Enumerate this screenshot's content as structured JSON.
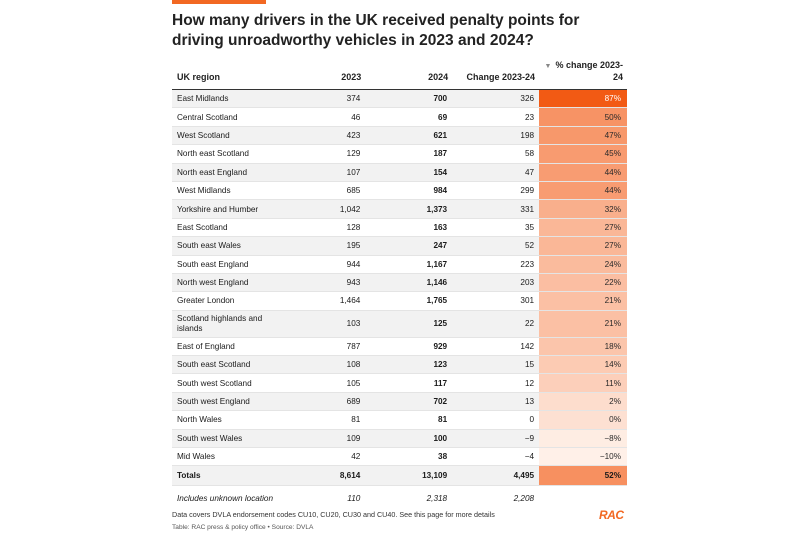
{
  "title": "How many drivers in the UK received penalty points for driving unroadworthy vehicles in 2023 and 2024?",
  "columns": {
    "region": "UK region",
    "y2023": "2023",
    "y2024": "2024",
    "change": "Change 2023-24",
    "pct": "% change 2023-24",
    "sort_icon": "triangle-down-icon"
  },
  "chart_data": {
    "type": "table",
    "title": "How many drivers in the UK received penalty points for driving unroadworthy vehicles in 2023 and 2024?",
    "rows": [
      {
        "region": "East Midlands",
        "y2023": "374",
        "y2024": "700",
        "change": "326",
        "pct": "87%",
        "pct_value": 87
      },
      {
        "region": "Central Scotland",
        "y2023": "46",
        "y2024": "69",
        "change": "23",
        "pct": "50%",
        "pct_value": 50
      },
      {
        "region": "West Scotland",
        "y2023": "423",
        "y2024": "621",
        "change": "198",
        "pct": "47%",
        "pct_value": 47
      },
      {
        "region": "North east Scotland",
        "y2023": "129",
        "y2024": "187",
        "change": "58",
        "pct": "45%",
        "pct_value": 45
      },
      {
        "region": "North east England",
        "y2023": "107",
        "y2024": "154",
        "change": "47",
        "pct": "44%",
        "pct_value": 44
      },
      {
        "region": "West Midlands",
        "y2023": "685",
        "y2024": "984",
        "change": "299",
        "pct": "44%",
        "pct_value": 44
      },
      {
        "region": "Yorkshire and Humber",
        "y2023": "1,042",
        "y2024": "1,373",
        "change": "331",
        "pct": "32%",
        "pct_value": 32
      },
      {
        "region": "East Scotland",
        "y2023": "128",
        "y2024": "163",
        "change": "35",
        "pct": "27%",
        "pct_value": 27
      },
      {
        "region": "South east Wales",
        "y2023": "195",
        "y2024": "247",
        "change": "52",
        "pct": "27%",
        "pct_value": 27
      },
      {
        "region": "South east England",
        "y2023": "944",
        "y2024": "1,167",
        "change": "223",
        "pct": "24%",
        "pct_value": 24
      },
      {
        "region": "North west England",
        "y2023": "943",
        "y2024": "1,146",
        "change": "203",
        "pct": "22%",
        "pct_value": 22
      },
      {
        "region": "Greater London",
        "y2023": "1,464",
        "y2024": "1,765",
        "change": "301",
        "pct": "21%",
        "pct_value": 21
      },
      {
        "region": "Scotland highlands and islands",
        "y2023": "103",
        "y2024": "125",
        "change": "22",
        "pct": "21%",
        "pct_value": 21
      },
      {
        "region": "East of England",
        "y2023": "787",
        "y2024": "929",
        "change": "142",
        "pct": "18%",
        "pct_value": 18
      },
      {
        "region": "South east Scotland",
        "y2023": "108",
        "y2024": "123",
        "change": "15",
        "pct": "14%",
        "pct_value": 14
      },
      {
        "region": "South west Scotland",
        "y2023": "105",
        "y2024": "117",
        "change": "12",
        "pct": "11%",
        "pct_value": 11
      },
      {
        "region": "South west England",
        "y2023": "689",
        "y2024": "702",
        "change": "13",
        "pct": "2%",
        "pct_value": 2
      },
      {
        "region": "North Wales",
        "y2023": "81",
        "y2024": "81",
        "change": "0",
        "pct": "0%",
        "pct_value": 0
      },
      {
        "region": "South west Wales",
        "y2023": "109",
        "y2024": "100",
        "change": "−9",
        "pct": "−8%",
        "pct_value": -8
      },
      {
        "region": "Mid Wales",
        "y2023": "42",
        "y2024": "38",
        "change": "−4",
        "pct": "−10%",
        "pct_value": -10
      }
    ],
    "totals": {
      "region": "Totals",
      "y2023": "8,614",
      "y2024": "13,109",
      "change": "4,495",
      "pct": "52%",
      "pct_value": 52
    },
    "unknown": {
      "region": "Includes unknown location",
      "y2023": "110",
      "y2024": "2,318",
      "change": "2,208"
    }
  },
  "colors": {
    "accent": "#f26822",
    "heat_high": "#f25a14",
    "heat_low": "#fff3ec"
  },
  "footnote": "Data covers DVLA endorsement codes CU10, CU20, CU30 and CU40. See this page for more details",
  "source": "Table: RAC press & policy office • Source: DVLA",
  "logo_text": "RAC"
}
